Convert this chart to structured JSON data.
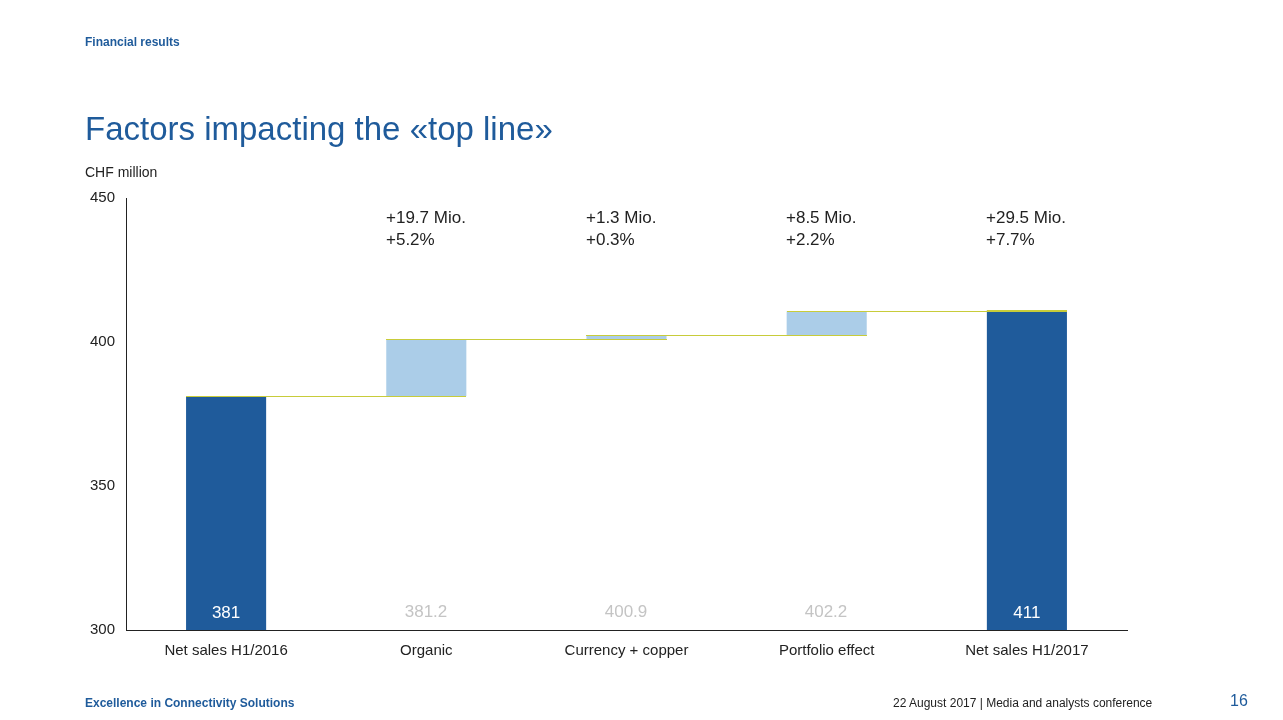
{
  "chart_data": {
    "type": "bar",
    "title": "Factors impacting the «top line»",
    "ylabel": "CHF million",
    "categories": [
      "Net sales H1/2016",
      "Organic",
      "Currency + copper",
      "Portfolio effect",
      "Net sales H1/2017"
    ],
    "base": [
      300,
      381.2,
      400.9,
      402.2,
      300
    ],
    "values": [
      81,
      19.7,
      1.3,
      8.5,
      111
    ],
    "colors": [
      "#1f5b9b",
      "#abcde8",
      "#abcde8",
      "#abcde8",
      "#1f5b9b"
    ],
    "value_labels": [
      "381",
      null,
      null,
      null,
      "411"
    ],
    "ylim": [
      300,
      450
    ],
    "yticks": [
      300,
      350,
      400,
      450
    ],
    "grid": false,
    "legend": false,
    "annotations": [
      "381.2",
      "400.9",
      "402.2",
      "+19.7 Mio.\n+5.2%",
      "+1.3 Mio.\n+0.3%",
      "+8.5 Mio.\n+2.2%",
      "+29.5 Mio.\n+7.7%",
      "Financial results",
      "Excellence in Connectivity Solutions",
      "22 August 2017 | Media and analysts conference",
      "16"
    ]
  }
}
